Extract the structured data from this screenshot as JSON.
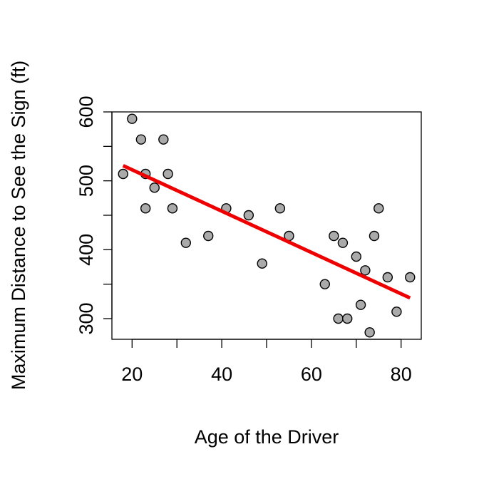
{
  "chart_data": {
    "type": "scatter",
    "title": "",
    "xlabel": "Age of the Driver",
    "ylabel": "Maximum Distance to See the Sign (ft)",
    "xlim": [
      15.5,
      84.5
    ],
    "ylim": [
      270,
      600
    ],
    "xticks": [
      20,
      40,
      60,
      80
    ],
    "yticks": [
      300,
      400,
      500,
      600
    ],
    "xtick_labels": [
      "20",
      "40",
      "60",
      "80"
    ],
    "ytick_labels": [
      "300",
      "400",
      "500",
      "600"
    ],
    "grid": false,
    "legend": "none",
    "point_fill": "#aaaaaa",
    "point_stroke": "#000000",
    "line_color": "#ee0000",
    "points": [
      {
        "x": 18,
        "y": 510
      },
      {
        "x": 20,
        "y": 590
      },
      {
        "x": 22,
        "y": 560
      },
      {
        "x": 23,
        "y": 510
      },
      {
        "x": 23,
        "y": 460
      },
      {
        "x": 25,
        "y": 490
      },
      {
        "x": 27,
        "y": 560
      },
      {
        "x": 28,
        "y": 510
      },
      {
        "x": 29,
        "y": 460
      },
      {
        "x": 32,
        "y": 410
      },
      {
        "x": 37,
        "y": 420
      },
      {
        "x": 41,
        "y": 460
      },
      {
        "x": 46,
        "y": 450
      },
      {
        "x": 49,
        "y": 380
      },
      {
        "x": 53,
        "y": 460
      },
      {
        "x": 55,
        "y": 420
      },
      {
        "x": 63,
        "y": 350
      },
      {
        "x": 65,
        "y": 420
      },
      {
        "x": 66,
        "y": 300
      },
      {
        "x": 67,
        "y": 410
      },
      {
        "x": 68,
        "y": 300
      },
      {
        "x": 70,
        "y": 390
      },
      {
        "x": 71,
        "y": 320
      },
      {
        "x": 72,
        "y": 370
      },
      {
        "x": 73,
        "y": 280
      },
      {
        "x": 74,
        "y": 420
      },
      {
        "x": 75,
        "y": 460
      },
      {
        "x": 77,
        "y": 360
      },
      {
        "x": 79,
        "y": 310
      },
      {
        "x": 82,
        "y": 360
      }
    ],
    "fit_line": {
      "x": [
        18,
        82
      ],
      "y": [
        522,
        330
      ]
    }
  }
}
